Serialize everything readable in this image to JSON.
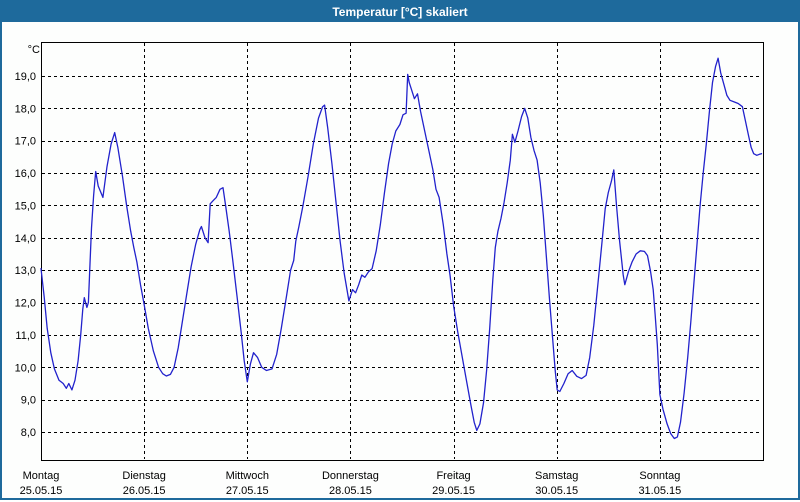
{
  "window": {
    "title": "Temperatur [°C] skaliert"
  },
  "chart_data": {
    "type": "line",
    "title": "Temperatur [°C] skaliert",
    "ylabel": "°C",
    "xlabel": "",
    "grid": "dashed",
    "legend_position": "none",
    "line_color": "#2222cc",
    "grid_color": "#000000",
    "frame_color": "#000000",
    "titlebar_color": "#1e6a9c",
    "y_unit_label": "°C",
    "ylim_visible": [
      7.13,
      20.05
    ],
    "xlim_days": [
      0,
      7
    ],
    "y_ticks": [
      {
        "value": 19,
        "label": "19,0"
      },
      {
        "value": 18,
        "label": "18,0"
      },
      {
        "value": 17,
        "label": "17,0"
      },
      {
        "value": 16,
        "label": "16,0"
      },
      {
        "value": 15,
        "label": "15,0"
      },
      {
        "value": 14,
        "label": "14,0"
      },
      {
        "value": 13,
        "label": "13,0"
      },
      {
        "value": 12,
        "label": "12,0"
      },
      {
        "value": 11,
        "label": "11,0"
      },
      {
        "value": 10,
        "label": "10,0"
      },
      {
        "value": 9,
        "label": "9,0"
      },
      {
        "value": 8,
        "label": "8,0"
      }
    ],
    "x_days": [
      {
        "name": "Montag",
        "date": "25.05.15"
      },
      {
        "name": "Dienstag",
        "date": "26.05.15"
      },
      {
        "name": "Mittwoch",
        "date": "27.05.15"
      },
      {
        "name": "Donnerstag",
        "date": "28.05.15"
      },
      {
        "name": "Freitag",
        "date": "29.05.15"
      },
      {
        "name": "Samstag",
        "date": "30.05.15"
      },
      {
        "name": "Sonntag",
        "date": "31.05.15"
      }
    ],
    "series": [
      {
        "name": "Temperatur",
        "points": [
          [
            0.0,
            13.05
          ],
          [
            0.03,
            12.2
          ],
          [
            0.06,
            11.2
          ],
          [
            0.095,
            10.45
          ],
          [
            0.13,
            9.95
          ],
          [
            0.175,
            9.6
          ],
          [
            0.215,
            9.5
          ],
          [
            0.245,
            9.35
          ],
          [
            0.27,
            9.5
          ],
          [
            0.3,
            9.3
          ],
          [
            0.33,
            9.6
          ],
          [
            0.36,
            10.2
          ],
          [
            0.385,
            11.0
          ],
          [
            0.405,
            11.8
          ],
          [
            0.42,
            12.15
          ],
          [
            0.445,
            11.85
          ],
          [
            0.46,
            12.0
          ],
          [
            0.475,
            13.2
          ],
          [
            0.49,
            14.3
          ],
          [
            0.51,
            15.3
          ],
          [
            0.53,
            16.05
          ],
          [
            0.555,
            15.6
          ],
          [
            0.6,
            15.25
          ],
          [
            0.64,
            16.2
          ],
          [
            0.68,
            16.9
          ],
          [
            0.715,
            17.25
          ],
          [
            0.745,
            16.8
          ],
          [
            0.79,
            15.9
          ],
          [
            0.83,
            15.0
          ],
          [
            0.87,
            14.2
          ],
          [
            0.9,
            13.7
          ],
          [
            0.93,
            13.25
          ],
          [
            0.965,
            12.55
          ],
          [
            1.0,
            11.95
          ],
          [
            1.04,
            11.2
          ],
          [
            1.09,
            10.5
          ],
          [
            1.14,
            10.0
          ],
          [
            1.18,
            9.8
          ],
          [
            1.215,
            9.73
          ],
          [
            1.255,
            9.78
          ],
          [
            1.29,
            10.0
          ],
          [
            1.33,
            10.6
          ],
          [
            1.37,
            11.4
          ],
          [
            1.41,
            12.2
          ],
          [
            1.455,
            13.1
          ],
          [
            1.5,
            13.8
          ],
          [
            1.54,
            14.25
          ],
          [
            1.555,
            14.35
          ],
          [
            1.59,
            14.0
          ],
          [
            1.62,
            13.85
          ],
          [
            1.64,
            15.05
          ],
          [
            1.67,
            15.15
          ],
          [
            1.7,
            15.25
          ],
          [
            1.735,
            15.5
          ],
          [
            1.765,
            15.55
          ],
          [
            1.79,
            15.0
          ],
          [
            1.825,
            14.2
          ],
          [
            1.86,
            13.3
          ],
          [
            1.9,
            12.2
          ],
          [
            1.94,
            11.1
          ],
          [
            1.97,
            10.2
          ],
          [
            2.0,
            9.55
          ],
          [
            2.03,
            10.1
          ],
          [
            2.06,
            10.45
          ],
          [
            2.1,
            10.3
          ],
          [
            2.14,
            10.0
          ],
          [
            2.185,
            9.9
          ],
          [
            2.24,
            9.95
          ],
          [
            2.285,
            10.4
          ],
          [
            2.33,
            11.2
          ],
          [
            2.38,
            12.2
          ],
          [
            2.42,
            13.0
          ],
          [
            2.45,
            13.3
          ],
          [
            2.47,
            13.9
          ],
          [
            2.5,
            14.35
          ],
          [
            2.54,
            15.0
          ],
          [
            2.59,
            15.9
          ],
          [
            2.64,
            16.9
          ],
          [
            2.69,
            17.7
          ],
          [
            2.73,
            18.05
          ],
          [
            2.75,
            18.1
          ],
          [
            2.78,
            17.4
          ],
          [
            2.82,
            16.3
          ],
          [
            2.86,
            15.1
          ],
          [
            2.9,
            13.9
          ],
          [
            2.94,
            12.9
          ],
          [
            2.985,
            12.05
          ],
          [
            3.02,
            12.4
          ],
          [
            3.05,
            12.3
          ],
          [
            3.08,
            12.55
          ],
          [
            3.11,
            12.85
          ],
          [
            3.14,
            12.78
          ],
          [
            3.175,
            12.95
          ],
          [
            3.21,
            13.05
          ],
          [
            3.25,
            13.6
          ],
          [
            3.29,
            14.4
          ],
          [
            3.33,
            15.4
          ],
          [
            3.37,
            16.3
          ],
          [
            3.405,
            16.9
          ],
          [
            3.44,
            17.3
          ],
          [
            3.48,
            17.5
          ],
          [
            3.51,
            17.8
          ],
          [
            3.54,
            17.85
          ],
          [
            3.555,
            19.05
          ],
          [
            3.57,
            18.8
          ],
          [
            3.59,
            18.6
          ],
          [
            3.62,
            18.3
          ],
          [
            3.65,
            18.45
          ],
          [
            3.68,
            17.9
          ],
          [
            3.72,
            17.3
          ],
          [
            3.76,
            16.7
          ],
          [
            3.8,
            16.1
          ],
          [
            3.83,
            15.5
          ],
          [
            3.86,
            15.25
          ],
          [
            3.9,
            14.4
          ],
          [
            3.935,
            13.5
          ],
          [
            3.965,
            12.85
          ],
          [
            4.0,
            11.9
          ],
          [
            4.04,
            11.1
          ],
          [
            4.09,
            10.2
          ],
          [
            4.13,
            9.5
          ],
          [
            4.17,
            8.8
          ],
          [
            4.2,
            8.3
          ],
          [
            4.225,
            8.05
          ],
          [
            4.255,
            8.25
          ],
          [
            4.29,
            8.9
          ],
          [
            4.32,
            9.9
          ],
          [
            4.35,
            11.2
          ],
          [
            4.38,
            12.7
          ],
          [
            4.405,
            13.7
          ],
          [
            4.43,
            14.2
          ],
          [
            4.46,
            14.6
          ],
          [
            4.49,
            15.1
          ],
          [
            4.52,
            15.7
          ],
          [
            4.55,
            16.4
          ],
          [
            4.57,
            17.2
          ],
          [
            4.595,
            16.95
          ],
          [
            4.625,
            17.3
          ],
          [
            4.66,
            17.75
          ],
          [
            4.69,
            18.0
          ],
          [
            4.72,
            17.7
          ],
          [
            4.75,
            17.1
          ],
          [
            4.78,
            16.7
          ],
          [
            4.81,
            16.4
          ],
          [
            4.84,
            15.7
          ],
          [
            4.87,
            14.7
          ],
          [
            4.9,
            13.4
          ],
          [
            4.93,
            12.1
          ],
          [
            4.96,
            10.9
          ],
          [
            4.985,
            9.9
          ],
          [
            5.005,
            9.3
          ],
          [
            5.03,
            9.25
          ],
          [
            5.07,
            9.5
          ],
          [
            5.11,
            9.8
          ],
          [
            5.15,
            9.9
          ],
          [
            5.195,
            9.72
          ],
          [
            5.24,
            9.65
          ],
          [
            5.285,
            9.75
          ],
          [
            5.32,
            10.3
          ],
          [
            5.36,
            11.3
          ],
          [
            5.4,
            12.6
          ],
          [
            5.44,
            13.9
          ],
          [
            5.47,
            14.9
          ],
          [
            5.5,
            15.4
          ],
          [
            5.53,
            15.75
          ],
          [
            5.553,
            16.1
          ],
          [
            5.58,
            15.0
          ],
          [
            5.61,
            13.9
          ],
          [
            5.645,
            12.85
          ],
          [
            5.66,
            12.55
          ],
          [
            5.695,
            12.95
          ],
          [
            5.73,
            13.25
          ],
          [
            5.77,
            13.5
          ],
          [
            5.81,
            13.6
          ],
          [
            5.85,
            13.58
          ],
          [
            5.88,
            13.45
          ],
          [
            5.91,
            12.95
          ],
          [
            5.935,
            12.4
          ],
          [
            5.955,
            11.6
          ],
          [
            5.975,
            10.7
          ],
          [
            6.0,
            9.15
          ],
          [
            6.03,
            8.7
          ],
          [
            6.07,
            8.25
          ],
          [
            6.105,
            7.95
          ],
          [
            6.14,
            7.8
          ],
          [
            6.17,
            7.85
          ],
          [
            6.2,
            8.3
          ],
          [
            6.235,
            9.2
          ],
          [
            6.27,
            10.3
          ],
          [
            6.3,
            11.4
          ],
          [
            6.33,
            12.6
          ],
          [
            6.36,
            13.8
          ],
          [
            6.39,
            15.0
          ],
          [
            6.42,
            16.0
          ],
          [
            6.45,
            16.9
          ],
          [
            6.48,
            17.9
          ],
          [
            6.51,
            18.8
          ],
          [
            6.54,
            19.3
          ],
          [
            6.565,
            19.55
          ],
          [
            6.59,
            19.1
          ],
          [
            6.62,
            18.75
          ],
          [
            6.65,
            18.4
          ],
          [
            6.68,
            18.25
          ],
          [
            6.72,
            18.2
          ],
          [
            6.76,
            18.15
          ],
          [
            6.8,
            18.05
          ],
          [
            6.83,
            17.6
          ],
          [
            6.86,
            17.15
          ],
          [
            6.885,
            16.8
          ],
          [
            6.91,
            16.6
          ],
          [
            6.94,
            16.55
          ],
          [
            6.965,
            16.58
          ],
          [
            6.985,
            16.6
          ]
        ]
      }
    ]
  }
}
